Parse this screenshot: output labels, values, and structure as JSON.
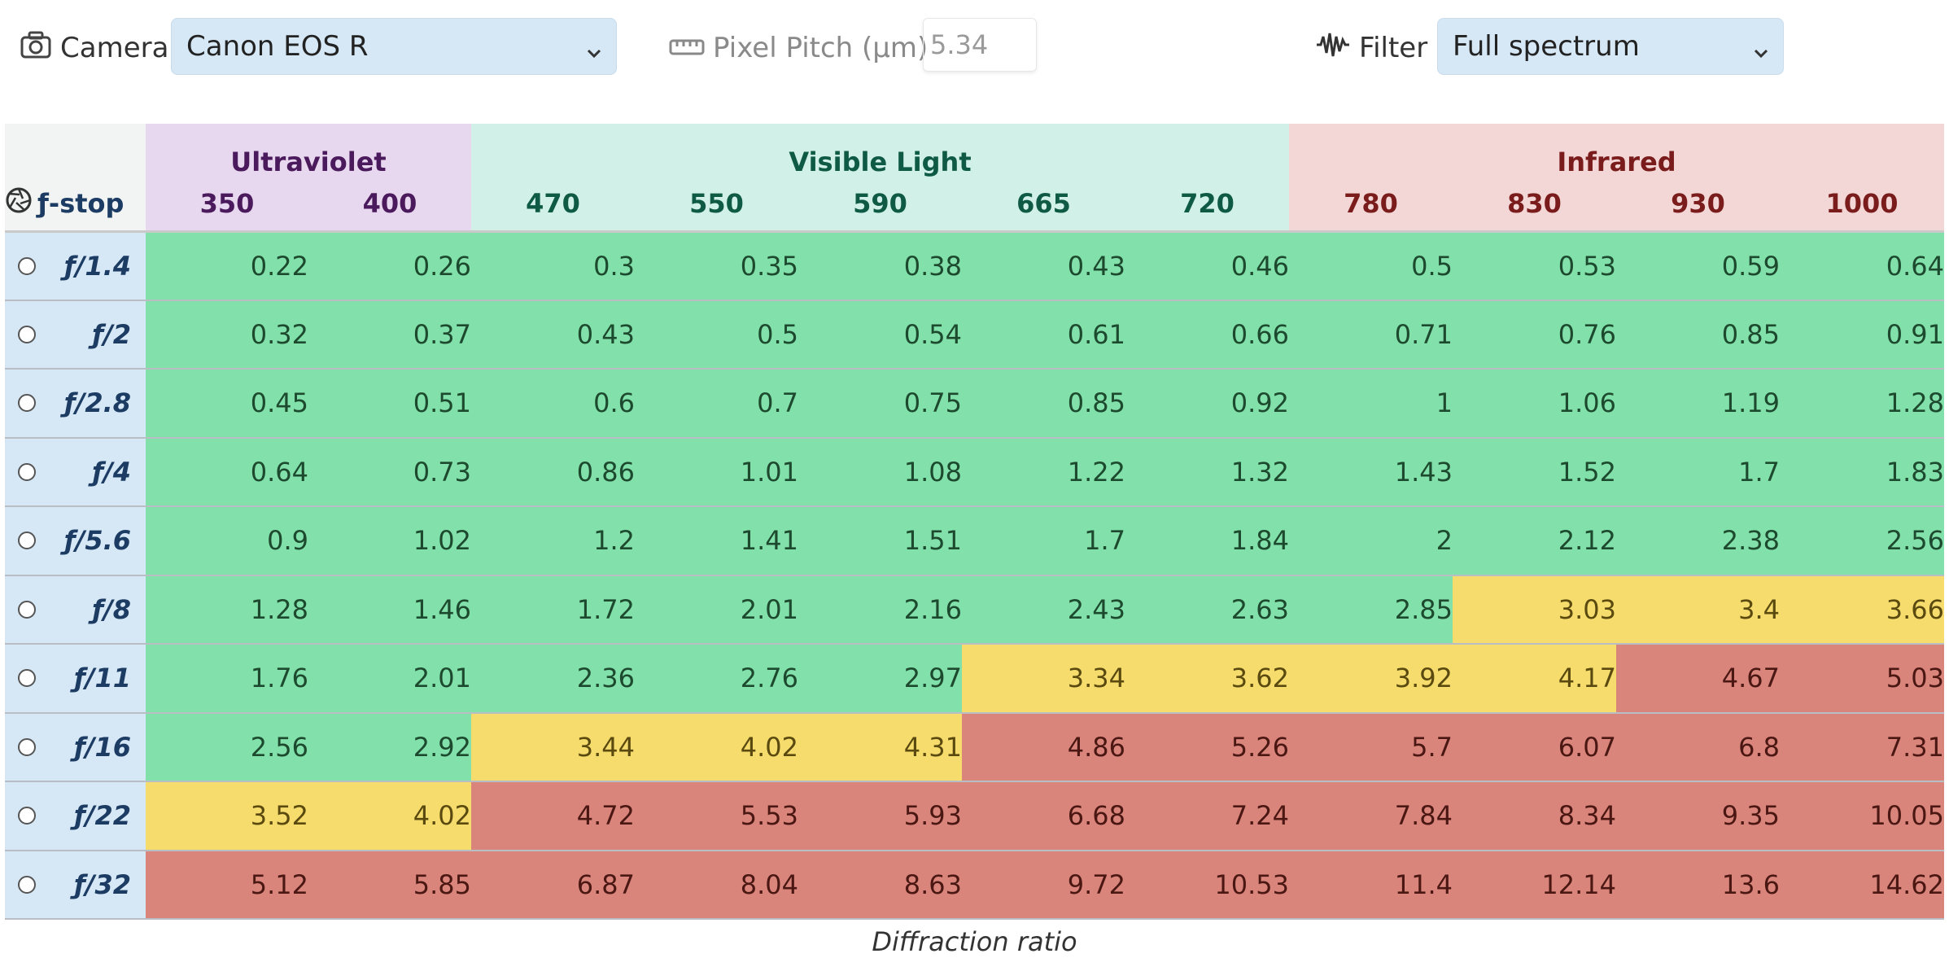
{
  "toolbar": {
    "camera_label": "Camera",
    "camera_value": "Canon EOS R",
    "pitch_label": "Pixel Pitch (µm)",
    "pitch_value": "5.34",
    "filter_label": "Filter",
    "filter_value": "Full spectrum",
    "icons": {
      "camera": "camera-icon",
      "pitch": "ruler-icon",
      "filter": "waveform-icon",
      "dropdown": "chevron-down-icon",
      "fstop": "aperture-icon"
    }
  },
  "table": {
    "fstop_header": "ƒ-stop",
    "groups": [
      {
        "label": "Ultraviolet",
        "span": 2
      },
      {
        "label": "Visible Light",
        "span": 5
      },
      {
        "label": "Infrared",
        "span": 4
      }
    ],
    "wavelengths": [
      "350",
      "400",
      "470",
      "550",
      "590",
      "665",
      "720",
      "780",
      "830",
      "930",
      "1000"
    ],
    "status_colors": {
      "good": "#82e0aa",
      "borderline": "#f6dc6c",
      "bad": "#d9857c"
    },
    "rows": [
      {
        "fstop": "ƒ/1.4",
        "values": [
          "0.22",
          "0.26",
          "0.3",
          "0.35",
          "0.38",
          "0.43",
          "0.46",
          "0.5",
          "0.53",
          "0.59",
          "0.64"
        ],
        "status": [
          "g",
          "g",
          "g",
          "g",
          "g",
          "g",
          "g",
          "g",
          "g",
          "g",
          "g"
        ]
      },
      {
        "fstop": "ƒ/2",
        "values": [
          "0.32",
          "0.37",
          "0.43",
          "0.5",
          "0.54",
          "0.61",
          "0.66",
          "0.71",
          "0.76",
          "0.85",
          "0.91"
        ],
        "status": [
          "g",
          "g",
          "g",
          "g",
          "g",
          "g",
          "g",
          "g",
          "g",
          "g",
          "g"
        ]
      },
      {
        "fstop": "ƒ/2.8",
        "values": [
          "0.45",
          "0.51",
          "0.6",
          "0.7",
          "0.75",
          "0.85",
          "0.92",
          "1",
          "1.06",
          "1.19",
          "1.28"
        ],
        "status": [
          "g",
          "g",
          "g",
          "g",
          "g",
          "g",
          "g",
          "g",
          "g",
          "g",
          "g"
        ]
      },
      {
        "fstop": "ƒ/4",
        "values": [
          "0.64",
          "0.73",
          "0.86",
          "1.01",
          "1.08",
          "1.22",
          "1.32",
          "1.43",
          "1.52",
          "1.7",
          "1.83"
        ],
        "status": [
          "g",
          "g",
          "g",
          "g",
          "g",
          "g",
          "g",
          "g",
          "g",
          "g",
          "g"
        ]
      },
      {
        "fstop": "ƒ/5.6",
        "values": [
          "0.9",
          "1.02",
          "1.2",
          "1.41",
          "1.51",
          "1.7",
          "1.84",
          "2",
          "2.12",
          "2.38",
          "2.56"
        ],
        "status": [
          "g",
          "g",
          "g",
          "g",
          "g",
          "g",
          "g",
          "g",
          "g",
          "g",
          "g"
        ]
      },
      {
        "fstop": "ƒ/8",
        "values": [
          "1.28",
          "1.46",
          "1.72",
          "2.01",
          "2.16",
          "2.43",
          "2.63",
          "2.85",
          "3.03",
          "3.4",
          "3.66"
        ],
        "status": [
          "g",
          "g",
          "g",
          "g",
          "g",
          "g",
          "g",
          "g",
          "y",
          "y",
          "y"
        ]
      },
      {
        "fstop": "ƒ/11",
        "values": [
          "1.76",
          "2.01",
          "2.36",
          "2.76",
          "2.97",
          "3.34",
          "3.62",
          "3.92",
          "4.17",
          "4.67",
          "5.03"
        ],
        "status": [
          "g",
          "g",
          "g",
          "g",
          "g",
          "y",
          "y",
          "y",
          "y",
          "r",
          "r"
        ]
      },
      {
        "fstop": "ƒ/16",
        "values": [
          "2.56",
          "2.92",
          "3.44",
          "4.02",
          "4.31",
          "4.86",
          "5.26",
          "5.7",
          "6.07",
          "6.8",
          "7.31"
        ],
        "status": [
          "g",
          "g",
          "y",
          "y",
          "y",
          "r",
          "r",
          "r",
          "r",
          "r",
          "r"
        ]
      },
      {
        "fstop": "ƒ/22",
        "values": [
          "3.52",
          "4.02",
          "4.72",
          "5.53",
          "5.93",
          "6.68",
          "7.24",
          "7.84",
          "8.34",
          "9.35",
          "10.05"
        ],
        "status": [
          "y",
          "y",
          "r",
          "r",
          "r",
          "r",
          "r",
          "r",
          "r",
          "r",
          "r"
        ]
      },
      {
        "fstop": "ƒ/32",
        "values": [
          "5.12",
          "5.85",
          "6.87",
          "8.04",
          "8.63",
          "9.72",
          "10.53",
          "11.4",
          "12.14",
          "13.6",
          "14.62"
        ],
        "status": [
          "r",
          "r",
          "r",
          "r",
          "r",
          "r",
          "r",
          "r",
          "r",
          "r",
          "r"
        ]
      }
    ]
  },
  "caption": "Diffraction ratio"
}
